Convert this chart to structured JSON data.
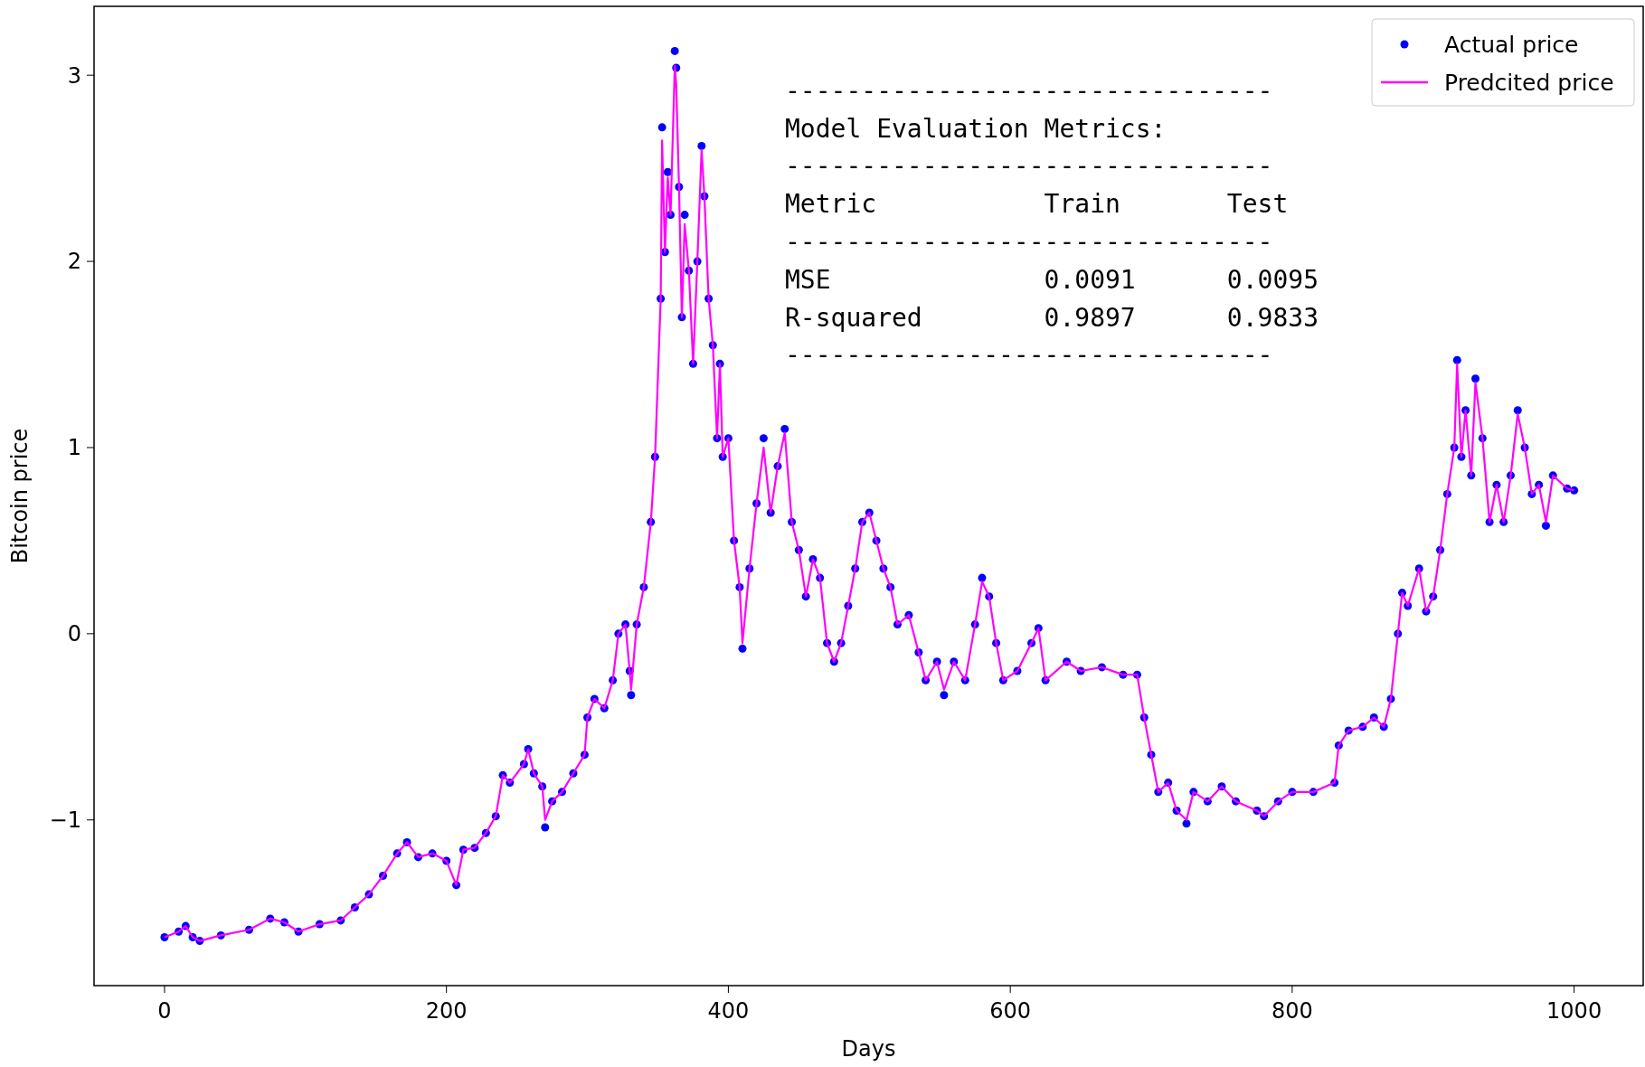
{
  "chart_data": {
    "type": "line",
    "xlabel": "Days",
    "ylabel": "Bitcoin price",
    "x": [
      0,
      10,
      15,
      20,
      25,
      40,
      60,
      75,
      85,
      95,
      110,
      125,
      135,
      145,
      155,
      165,
      172,
      180,
      190,
      200,
      207,
      212,
      220,
      228,
      235,
      240,
      245,
      255,
      258,
      262,
      268,
      270,
      275,
      282,
      290,
      298,
      300,
      305,
      312,
      318,
      322,
      327,
      330,
      331,
      335,
      340,
      345,
      348,
      352,
      353,
      355,
      357,
      359,
      362,
      363,
      365,
      367,
      369,
      372,
      375,
      378,
      381,
      383,
      386,
      389,
      392,
      394,
      396,
      400,
      404,
      408,
      410,
      415,
      420,
      425,
      430,
      435,
      440,
      445,
      450,
      455,
      460,
      465,
      470,
      475,
      480,
      485,
      490,
      495,
      500,
      505,
      510,
      515,
      520,
      528,
      535,
      540,
      548,
      553,
      560,
      568,
      575,
      580,
      585,
      590,
      595,
      605,
      615,
      620,
      625,
      640,
      650,
      665,
      680,
      690,
      695,
      700,
      705,
      712,
      718,
      725,
      730,
      740,
      750,
      760,
      775,
      780,
      790,
      800,
      815,
      830,
      833,
      840,
      850,
      858,
      865,
      870,
      875,
      878,
      882,
      890,
      895,
      900,
      905,
      910,
      915,
      917,
      920,
      923,
      927,
      930,
      935,
      940,
      945,
      950,
      955,
      960,
      965,
      970,
      975,
      980,
      985,
      995,
      1000
    ],
    "series": [
      {
        "name": "Actual price",
        "type": "scatter",
        "marker": "circle",
        "color": "#0000ff",
        "values": [
          -1.63,
          -1.6,
          -1.57,
          -1.63,
          -1.65,
          -1.62,
          -1.59,
          -1.53,
          -1.55,
          -1.6,
          -1.56,
          -1.54,
          -1.47,
          -1.4,
          -1.3,
          -1.18,
          -1.12,
          -1.2,
          -1.18,
          -1.22,
          -1.35,
          -1.16,
          -1.15,
          -1.07,
          -0.98,
          -0.76,
          -0.8,
          -0.7,
          -0.62,
          -0.75,
          -0.82,
          -1.04,
          -0.9,
          -0.85,
          -0.75,
          -0.65,
          -0.45,
          -0.35,
          -0.4,
          -0.25,
          0.0,
          0.05,
          -0.2,
          -0.33,
          0.05,
          0.25,
          0.6,
          0.95,
          1.8,
          2.72,
          2.05,
          2.48,
          2.25,
          3.13,
          3.04,
          2.4,
          1.7,
          2.25,
          1.95,
          1.45,
          2.0,
          2.62,
          2.35,
          1.8,
          1.55,
          1.05,
          1.45,
          0.95,
          1.05,
          0.5,
          0.25,
          -0.08,
          0.35,
          0.7,
          1.05,
          0.65,
          0.9,
          1.1,
          0.6,
          0.45,
          0.2,
          0.4,
          0.3,
          -0.05,
          -0.15,
          -0.05,
          0.15,
          0.35,
          0.6,
          0.65,
          0.5,
          0.35,
          0.25,
          0.05,
          0.1,
          -0.1,
          -0.25,
          -0.15,
          -0.33,
          -0.15,
          -0.25,
          0.05,
          0.3,
          0.2,
          -0.05,
          -0.25,
          -0.2,
          -0.05,
          0.03,
          -0.25,
          -0.15,
          -0.2,
          -0.18,
          -0.22,
          -0.22,
          -0.45,
          -0.65,
          -0.85,
          -0.8,
          -0.95,
          -1.02,
          -0.85,
          -0.9,
          -0.82,
          -0.9,
          -0.95,
          -0.98,
          -0.9,
          -0.85,
          -0.85,
          -0.8,
          -0.6,
          -0.52,
          -0.5,
          -0.45,
          -0.5,
          -0.35,
          0.0,
          0.22,
          0.15,
          0.35,
          0.12,
          0.2,
          0.45,
          0.75,
          1.0,
          1.47,
          0.95,
          1.2,
          0.85,
          1.37,
          1.05,
          0.6,
          0.8,
          0.6,
          0.85,
          1.2,
          1.0,
          0.75,
          0.8,
          0.58,
          0.85,
          0.78,
          0.77
        ]
      },
      {
        "name": "Predcited price",
        "type": "line",
        "color": "#ff00ff",
        "values": [
          -1.63,
          -1.6,
          -1.57,
          -1.63,
          -1.65,
          -1.62,
          -1.59,
          -1.53,
          -1.55,
          -1.6,
          -1.56,
          -1.54,
          -1.47,
          -1.4,
          -1.3,
          -1.18,
          -1.12,
          -1.2,
          -1.18,
          -1.22,
          -1.35,
          -1.16,
          -1.15,
          -1.07,
          -0.98,
          -0.76,
          -0.8,
          -0.7,
          -0.62,
          -0.75,
          -0.82,
          -1.0,
          -0.9,
          -0.85,
          -0.75,
          -0.65,
          -0.45,
          -0.35,
          -0.4,
          -0.25,
          0.0,
          0.05,
          -0.2,
          -0.3,
          0.05,
          0.25,
          0.6,
          0.95,
          1.8,
          2.65,
          2.05,
          2.45,
          2.25,
          3.05,
          2.95,
          2.4,
          1.7,
          2.2,
          1.95,
          1.45,
          2.0,
          2.6,
          2.35,
          1.8,
          1.55,
          1.05,
          1.45,
          0.95,
          1.05,
          0.5,
          0.25,
          -0.05,
          0.35,
          0.7,
          1.0,
          0.65,
          0.9,
          1.08,
          0.6,
          0.45,
          0.2,
          0.4,
          0.3,
          -0.05,
          -0.15,
          -0.05,
          0.15,
          0.35,
          0.6,
          0.65,
          0.5,
          0.35,
          0.25,
          0.05,
          0.1,
          -0.1,
          -0.25,
          -0.15,
          -0.3,
          -0.15,
          -0.25,
          0.05,
          0.28,
          0.2,
          -0.05,
          -0.25,
          -0.2,
          -0.05,
          0.03,
          -0.25,
          -0.15,
          -0.2,
          -0.18,
          -0.22,
          -0.22,
          -0.45,
          -0.65,
          -0.85,
          -0.8,
          -0.95,
          -1.0,
          -0.85,
          -0.9,
          -0.82,
          -0.9,
          -0.95,
          -0.98,
          -0.9,
          -0.85,
          -0.85,
          -0.8,
          -0.6,
          -0.52,
          -0.5,
          -0.45,
          -0.5,
          -0.35,
          0.0,
          0.22,
          0.15,
          0.35,
          0.12,
          0.2,
          0.45,
          0.75,
          1.0,
          1.45,
          0.95,
          1.2,
          0.85,
          1.35,
          1.05,
          0.6,
          0.8,
          0.6,
          0.85,
          1.18,
          1.0,
          0.75,
          0.8,
          0.6,
          0.85,
          0.78,
          0.77
        ]
      }
    ],
    "xlim": [
      -50,
      1049
    ],
    "ylim": [
      -1.89,
      3.37
    ],
    "xticks": [
      0,
      200,
      400,
      600,
      800,
      1000
    ],
    "yticks": [
      -1,
      0,
      1,
      2,
      3
    ],
    "legend": "top right",
    "grid": false,
    "annotations": [
      "--------------------------------",
      "Model Evaluation Metrics:",
      "--------------------------------",
      "Metric           Train       Test",
      "--------------------------------",
      "MSE              0.0091      0.0095",
      "R-squared        0.9897      0.9833",
      "--------------------------------"
    ]
  }
}
